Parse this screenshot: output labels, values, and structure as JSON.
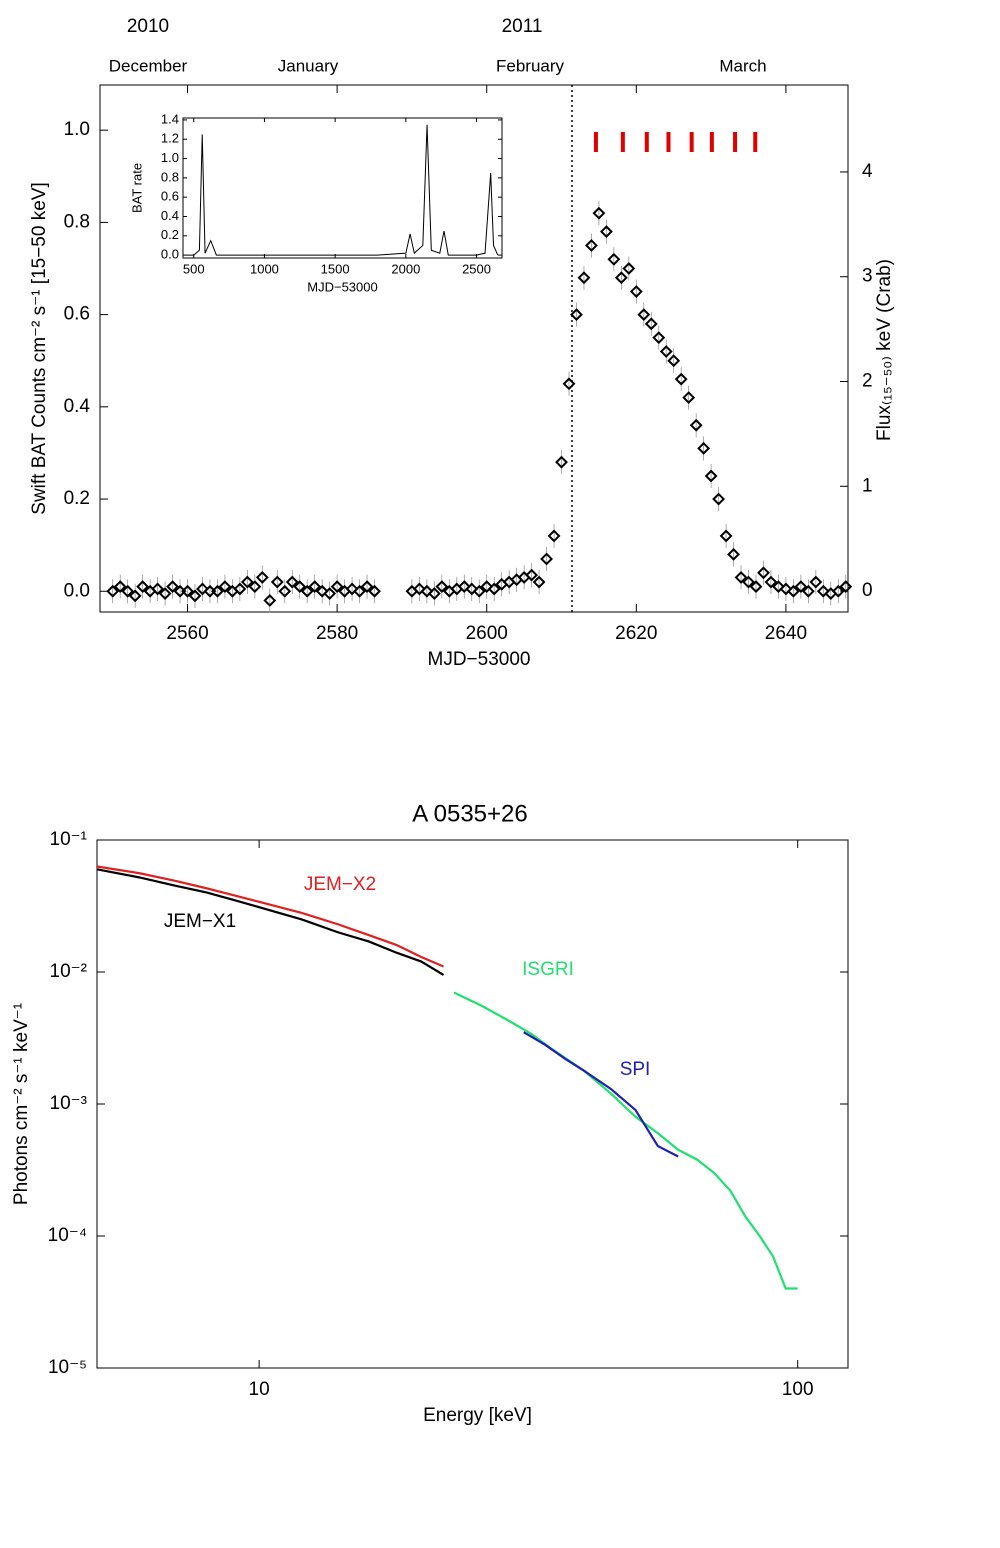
{
  "chart_data": [
    {
      "type": "scatter",
      "xlabel": "MJD−53000",
      "ylabel": "Swift BAT Counts cm⁻² s⁻¹ [15−50 keV]",
      "y2label": "Flux₍₁₅₋₅₀₎ keV (Crab)",
      "years": [
        "2010",
        "2011"
      ],
      "months": [
        "December",
        "January",
        "February",
        "March"
      ],
      "xlim": [
        2548.3,
        2648.3
      ],
      "ylim": [
        -0.045,
        1.098
      ],
      "y2lim": [
        -0.2,
        4.83
      ],
      "xticks": [
        2560,
        2580,
        2600,
        2620,
        2640
      ],
      "yticks": [
        {
          "value": 0,
          "label": "0.0"
        },
        {
          "value": 0.2,
          "label": "0.2"
        },
        {
          "value": 0.4,
          "label": "0.4"
        },
        {
          "value": 0.6,
          "label": "0.6"
        },
        {
          "value": 0.8,
          "label": "0.8"
        },
        {
          "value": 1.0,
          "label": "1.0"
        }
      ],
      "y2ticks": [
        0,
        1,
        2,
        3,
        4
      ],
      "color": "#000000",
      "vline_x": 2611.4,
      "markers_x": [
        2614.6,
        2618.2,
        2621.4,
        2624.3,
        2627.4,
        2630.1,
        2633.2,
        2635.9
      ],
      "markers_color": "#e00000",
      "x": [
        2550,
        2551,
        2552,
        2553,
        2554,
        2555,
        2556,
        2557,
        2558,
        2559,
        2560,
        2561,
        2562,
        2563,
        2564,
        2565,
        2566,
        2567,
        2568,
        2569,
        2570,
        2571,
        2572,
        2573,
        2574,
        2575,
        2576,
        2577,
        2578,
        2579,
        2580,
        2581,
        2582,
        2583,
        2584,
        2585,
        2590,
        2591,
        2592,
        2593,
        2594,
        2595,
        2596,
        2597,
        2598,
        2599,
        2600,
        2601,
        2602,
        2603,
        2604,
        2605,
        2606,
        2607,
        2608,
        2609,
        2610,
        2611,
        2612,
        2613,
        2614,
        2615,
        2616,
        2617,
        2618,
        2619,
        2620,
        2621,
        2622,
        2623,
        2624,
        2625,
        2626,
        2627,
        2628,
        2629,
        2630,
        2631,
        2632,
        2633,
        2634,
        2635,
        2636,
        2637,
        2638,
        2639,
        2640,
        2641,
        2642,
        2643,
        2644,
        2645,
        2646,
        2647,
        2648
      ],
      "values": [
        0.0,
        0.01,
        0.0,
        -0.01,
        0.01,
        0.0,
        0.005,
        -0.005,
        0.01,
        0.0,
        0.0,
        -0.01,
        0.005,
        0.0,
        0.0,
        0.01,
        0.0,
        0.005,
        0.02,
        0.01,
        0.03,
        -0.02,
        0.02,
        0.0,
        0.02,
        0.01,
        0.0,
        0.01,
        0.0,
        -0.005,
        0.01,
        0.0,
        0.005,
        0.0,
        0.01,
        0.0,
        0.0,
        0.005,
        0.0,
        -0.005,
        0.01,
        0.0,
        0.005,
        0.01,
        0.005,
        0.0,
        0.01,
        0.005,
        0.015,
        0.02,
        0.025,
        0.03,
        0.035,
        0.02,
        0.07,
        0.12,
        0.28,
        0.45,
        0.6,
        0.68,
        0.75,
        0.82,
        0.78,
        0.72,
        0.68,
        0.7,
        0.65,
        0.6,
        0.58,
        0.55,
        0.52,
        0.5,
        0.46,
        0.42,
        0.36,
        0.31,
        0.25,
        0.2,
        0.12,
        0.08,
        0.03,
        0.02,
        0.01,
        0.04,
        0.02,
        0.01,
        0.005,
        0.0,
        0.01,
        0.0,
        0.02,
        0.0,
        -0.005,
        0.0,
        0.01
      ]
    },
    {
      "type": "line",
      "xlabel": "MJD−53000",
      "ylabel": "BAT rate",
      "xlim": [
        424,
        2680
      ],
      "ylim": [
        -0.03,
        1.42
      ],
      "xticks": [
        500,
        1000,
        1500,
        2000,
        2500
      ],
      "yticks": [
        {
          "value": 0,
          "label": "0.0"
        },
        {
          "value": 0.2,
          "label": "0.2"
        },
        {
          "value": 0.4,
          "label": "0.4"
        },
        {
          "value": 0.6,
          "label": "0.6"
        },
        {
          "value": 0.8,
          "label": "0.8"
        },
        {
          "value": 1.0,
          "label": "1.0"
        },
        {
          "value": 1.2,
          "label": "1.2"
        },
        {
          "value": 1.4,
          "label": "1.4"
        }
      ],
      "color": "#000000",
      "x": [
        450,
        500,
        540,
        560,
        580,
        620,
        660,
        800,
        1000,
        1200,
        1400,
        1600,
        1800,
        2000,
        2030,
        2060,
        2120,
        2150,
        2180,
        2240,
        2270,
        2300,
        2400,
        2500,
        2560,
        2600,
        2620,
        2650
      ],
      "values": [
        0,
        0,
        0.05,
        1.25,
        0.02,
        0.15,
        0,
        0,
        0,
        0,
        0,
        0,
        0,
        0.02,
        0.22,
        0.02,
        0.1,
        1.35,
        0.05,
        0.02,
        0.25,
        0,
        0,
        0,
        0.02,
        0.85,
        0.1,
        0
      ]
    },
    {
      "type": "line",
      "title": "A 0535+26",
      "xlabel": "Energy [keV]",
      "ylabel": "Photons cm⁻² s⁻¹ keV⁻¹",
      "log_x": true,
      "log_y": true,
      "xlim": [
        5,
        124
      ],
      "ylim": [
        1e-05,
        0.1
      ],
      "xticks": [
        10,
        100
      ],
      "yticks": [
        {
          "value": 0.1,
          "label": "10⁻¹"
        },
        {
          "value": 0.01,
          "label": "10⁻²"
        },
        {
          "value": 0.001,
          "label": "10⁻³"
        },
        {
          "value": 0.0001,
          "label": "10⁻⁴"
        },
        {
          "value": 1e-05,
          "label": "10⁻⁵"
        }
      ],
      "series": [
        {
          "name": "JEM−X1",
          "color": "#000000",
          "x": [
            5,
            6,
            7,
            8,
            9,
            10,
            12,
            14,
            16,
            18,
            20,
            22
          ],
          "values": [
            0.06,
            0.052,
            0.045,
            0.04,
            0.035,
            0.031,
            0.025,
            0.02,
            0.017,
            0.014,
            0.012,
            0.0095
          ]
        },
        {
          "name": "JEM−X2",
          "color": "#e02020",
          "x": [
            5,
            6,
            7,
            8,
            9,
            10,
            12,
            14,
            16,
            18,
            20,
            22
          ],
          "values": [
            0.063,
            0.056,
            0.049,
            0.043,
            0.038,
            0.034,
            0.028,
            0.023,
            0.019,
            0.016,
            0.013,
            0.011
          ]
        },
        {
          "name": "ISGRI",
          "color": "#20e070",
          "x": [
            23,
            26,
            29,
            32,
            35,
            40,
            45,
            50,
            55,
            60,
            65,
            70,
            75,
            80,
            85,
            90,
            95,
            100
          ],
          "values": [
            0.007,
            0.0055,
            0.0043,
            0.0034,
            0.0026,
            0.0018,
            0.0012,
            0.0008,
            0.0006,
            0.00045,
            0.00038,
            0.0003,
            0.00022,
            0.00014,
            0.0001,
            7e-05,
            4e-05,
            4e-05
          ]
        },
        {
          "name": "SPI",
          "color": "#2020b0",
          "x": [
            31,
            34,
            37,
            40,
            45,
            50,
            55,
            60
          ],
          "values": [
            0.0035,
            0.0028,
            0.0022,
            0.0018,
            0.0013,
            0.0009,
            0.00048,
            0.0004
          ]
        }
      ]
    }
  ]
}
